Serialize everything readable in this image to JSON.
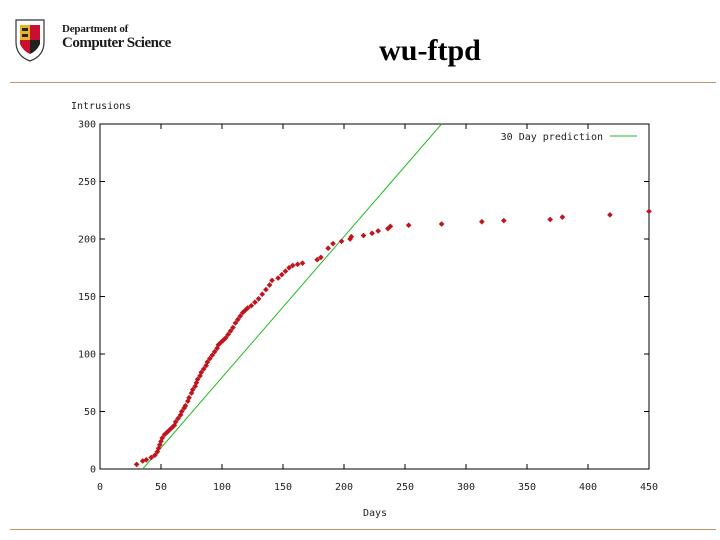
{
  "header": {
    "dept_line1": "Department of",
    "dept_line2": "Computer Science",
    "title": "wu-ftpd"
  },
  "colors": {
    "points": "#c0141c",
    "prediction": "#22bb22",
    "rule": "#c8946a",
    "seal_red": "#c8102e",
    "seal_gold": "#e8b423"
  },
  "icons": {
    "logo": "university-seal-icon"
  },
  "chart_data": {
    "type": "scatter",
    "title": "",
    "xlabel": "Days",
    "ylabel": "Intrusions",
    "xlim": [
      0,
      450
    ],
    "ylim": [
      0,
      300
    ],
    "xticks": [
      0,
      50,
      100,
      150,
      200,
      250,
      300,
      350,
      400,
      450
    ],
    "yticks": [
      0,
      50,
      100,
      150,
      200,
      250,
      300
    ],
    "grid": false,
    "legend": {
      "position": "top-right"
    },
    "series": [
      {
        "kind": "points",
        "points": [
          [
            30,
            4
          ],
          [
            35,
            7
          ],
          [
            38,
            8
          ],
          [
            42,
            10
          ],
          [
            45,
            12
          ],
          [
            47,
            15
          ],
          [
            48,
            18
          ],
          [
            49,
            21
          ],
          [
            50,
            24
          ],
          [
            51,
            27
          ],
          [
            53,
            30
          ],
          [
            55,
            32
          ],
          [
            57,
            34
          ],
          [
            59,
            36
          ],
          [
            61,
            38
          ],
          [
            62,
            41
          ],
          [
            64,
            44
          ],
          [
            66,
            47
          ],
          [
            67,
            50
          ],
          [
            69,
            53
          ],
          [
            70,
            55
          ],
          [
            72,
            59
          ],
          [
            73,
            62
          ],
          [
            75,
            66
          ],
          [
            76,
            69
          ],
          [
            78,
            72
          ],
          [
            79,
            75
          ],
          [
            80,
            78
          ],
          [
            82,
            81
          ],
          [
            83,
            84
          ],
          [
            85,
            87
          ],
          [
            87,
            90
          ],
          [
            88,
            93
          ],
          [
            90,
            96
          ],
          [
            92,
            99
          ],
          [
            94,
            102
          ],
          [
            96,
            105
          ],
          [
            97,
            108
          ],
          [
            99,
            110
          ],
          [
            101,
            112
          ],
          [
            103,
            114
          ],
          [
            105,
            117
          ],
          [
            107,
            120
          ],
          [
            109,
            123
          ],
          [
            111,
            127
          ],
          [
            113,
            130
          ],
          [
            115,
            133
          ],
          [
            117,
            136
          ],
          [
            119,
            138
          ],
          [
            121,
            140
          ],
          [
            124,
            142
          ],
          [
            127,
            145
          ],
          [
            130,
            148
          ],
          [
            133,
            152
          ],
          [
            136,
            156
          ],
          [
            139,
            160
          ],
          [
            141,
            164
          ],
          [
            146,
            166
          ],
          [
            149,
            169
          ],
          [
            152,
            172
          ],
          [
            155,
            175
          ],
          [
            158,
            177
          ],
          [
            162,
            178
          ],
          [
            166,
            179
          ],
          [
            178,
            182
          ],
          [
            181,
            184
          ],
          [
            187,
            192
          ],
          [
            191,
            196
          ],
          [
            198,
            198
          ],
          [
            205,
            200
          ],
          [
            206,
            202
          ],
          [
            216,
            203
          ],
          [
            223,
            205
          ],
          [
            228,
            207
          ],
          [
            236,
            209
          ],
          [
            238,
            211
          ],
          [
            253,
            212
          ],
          [
            280,
            213
          ],
          [
            313,
            215
          ],
          [
            331,
            216
          ],
          [
            369,
            217
          ],
          [
            379,
            219
          ],
          [
            418,
            221
          ],
          [
            450,
            224
          ]
        ]
      },
      {
        "name": "30 Day prediction",
        "kind": "line",
        "points": [
          [
            35,
            0
          ],
          [
            280,
            300
          ]
        ]
      }
    ]
  }
}
